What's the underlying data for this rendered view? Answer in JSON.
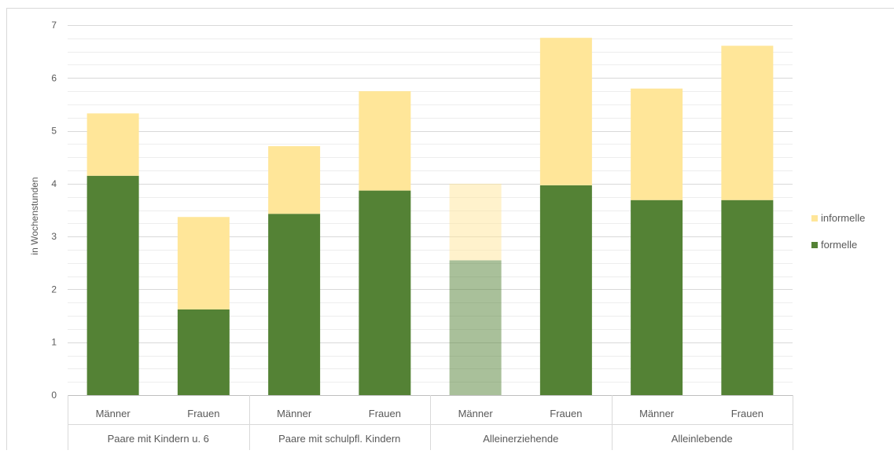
{
  "chart_data": {
    "type": "bar",
    "stacked": true,
    "ylabel": "in Wochenstunden",
    "xlabel": "",
    "ylim": [
      0,
      7
    ],
    "y_ticks": [
      0,
      1,
      2,
      3,
      4,
      5,
      6,
      7
    ],
    "grid": "horizontal, major and minor",
    "legend_position": "right",
    "groups": [
      {
        "label": "Paare mit Kindern u. 6",
        "categories": [
          "Männer",
          "Frauen"
        ]
      },
      {
        "label": "Paare mit schulpfl. Kindern",
        "categories": [
          "Männer",
          "Frauen"
        ]
      },
      {
        "label": "Alleinerziehende",
        "categories": [
          "Männer",
          "Frauen"
        ]
      },
      {
        "label": "Alleinlebende",
        "categories": [
          "Männer",
          "Frauen"
        ]
      }
    ],
    "categories": [
      "Männer",
      "Frauen",
      "Männer",
      "Frauen",
      "Männer",
      "Frauen",
      "Männer",
      "Frauen"
    ],
    "series": [
      {
        "name": "formelle",
        "color": "#548235",
        "values": [
          4.15,
          1.62,
          3.43,
          3.87,
          2.55,
          3.97,
          3.69,
          3.69
        ]
      },
      {
        "name": "informelle",
        "color": "#FFE699",
        "values": [
          1.18,
          1.75,
          1.28,
          1.88,
          1.45,
          2.79,
          2.11,
          2.92
        ]
      }
    ],
    "faded_categories": [
      4
    ]
  }
}
